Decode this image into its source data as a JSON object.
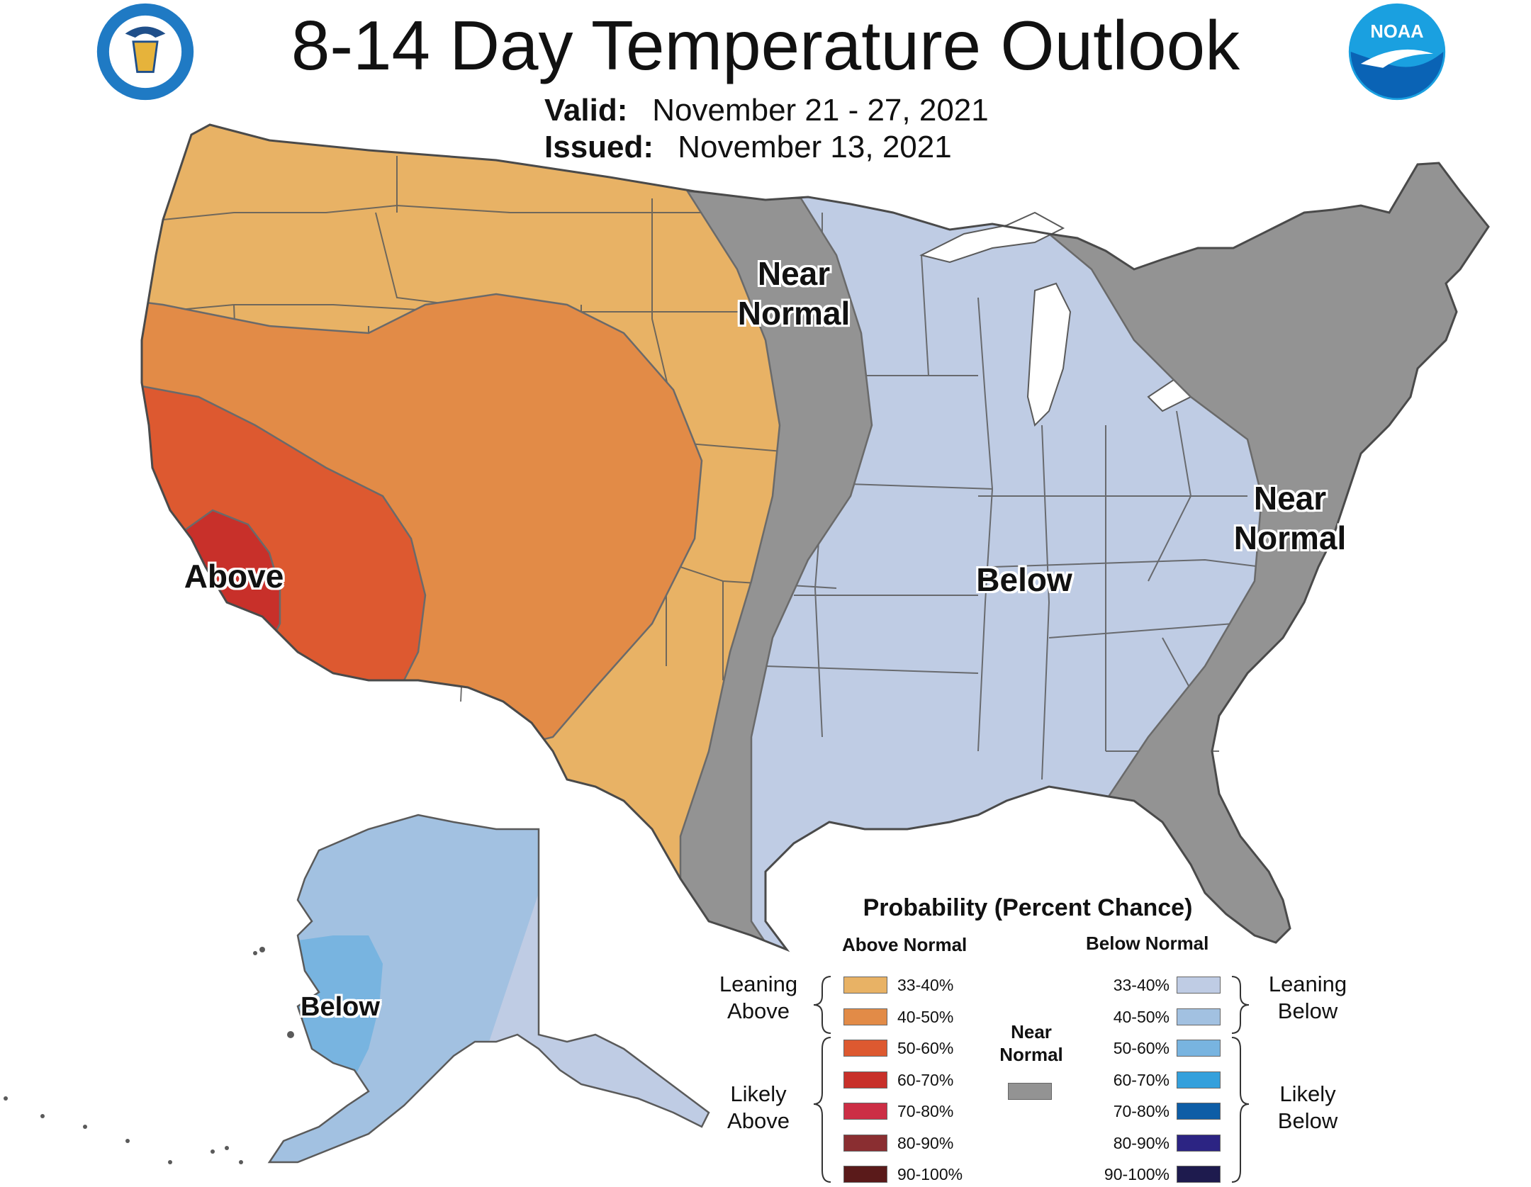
{
  "header": {
    "title": "8-14 Day Temperature Outlook",
    "valid_label": "Valid:",
    "valid_value": "November 21 - 27, 2021",
    "issued_label": "Issued:",
    "issued_value": "November 13, 2021"
  },
  "logos": {
    "left": "department-of-commerce-seal",
    "right": "noaa-logo",
    "noaa_text": "NOAA"
  },
  "map_labels": {
    "near_normal_central": "Near Normal",
    "near_normal_east": "Near Normal",
    "above_west": "Above",
    "below_central": "Below",
    "below_alaska": "Below"
  },
  "colors": {
    "above_33_40": "#E8B265",
    "above_40_50": "#E28B47",
    "above_50_60": "#DD5930",
    "above_60_70": "#C8302A",
    "above_70_80": "#CC2E45",
    "above_80_90": "#8A2E31",
    "above_90_100": "#5A1A1A",
    "near_normal": "#939393",
    "below_33_40": "#BFCCE4",
    "below_40_50": "#A2C1E1",
    "below_50_60": "#78B4E0",
    "below_60_70": "#34A0DC",
    "below_70_80": "#0E5DA6",
    "below_80_90": "#2C2483",
    "below_90_100": "#1E1B4E",
    "state_border": "#5A5A5A"
  },
  "legend": {
    "title": "Probability (Percent Chance)",
    "above_header": "Above Normal",
    "below_header": "Below Normal",
    "near_label": "Near Normal",
    "leaning_above": "Leaning Above",
    "likely_above": "Likely Above",
    "leaning_below": "Leaning Below",
    "likely_below": "Likely Below",
    "above_bins": [
      {
        "label": "33-40%",
        "color": "#E8B265"
      },
      {
        "label": "40-50%",
        "color": "#E28B47"
      },
      {
        "label": "50-60%",
        "color": "#DD5930"
      },
      {
        "label": "60-70%",
        "color": "#C8302A"
      },
      {
        "label": "70-80%",
        "color": "#CC2E45"
      },
      {
        "label": "80-90%",
        "color": "#8A2E31"
      },
      {
        "label": "90-100%",
        "color": "#5A1A1A"
      }
    ],
    "below_bins": [
      {
        "label": "33-40%",
        "color": "#BFCCE4"
      },
      {
        "label": "40-50%",
        "color": "#A2C1E1"
      },
      {
        "label": "50-60%",
        "color": "#78B4E0"
      },
      {
        "label": "60-70%",
        "color": "#34A0DC"
      },
      {
        "label": "70-80%",
        "color": "#0E5DA6"
      },
      {
        "label": "80-90%",
        "color": "#2C2483"
      },
      {
        "label": "90-100%",
        "color": "#1E1B4E"
      }
    ],
    "near_color": "#939393"
  }
}
